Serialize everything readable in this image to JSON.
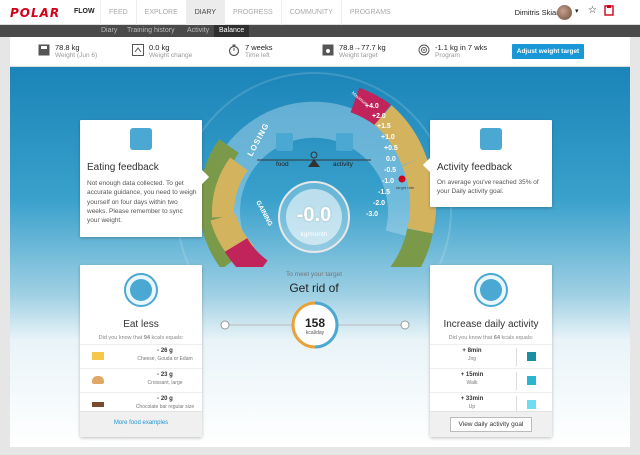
{
  "header": {
    "logo": "POLAR",
    "brand": "FLOW",
    "nav": [
      "FEED",
      "EXPLORE",
      "DIARY",
      "PROGRESS",
      "COMMUNITY",
      "PROGRAMS"
    ],
    "user_name": "Dimitris Skiannis"
  },
  "subnav": {
    "tabs": [
      "Diary",
      "Training history",
      "Activity",
      "Balance"
    ],
    "active": "Balance"
  },
  "stats": [
    {
      "icon": "scale-icon",
      "value": "78.8 kg",
      "label": "Weight (Jun 6)"
    },
    {
      "icon": "scale-change-icon",
      "value": "0.0 kg",
      "label": "Weight change"
    },
    {
      "icon": "stopwatch-icon",
      "value": "7 weeks",
      "label": "Time left"
    },
    {
      "icon": "target-scale-icon",
      "value": "78.8→77.7 kg",
      "label": "Weight target"
    },
    {
      "icon": "target-icon",
      "value": "-1.1 kg in 7 wks",
      "label": "Program"
    }
  ],
  "adjust_button": "Adjust weight target",
  "gauge": {
    "losing": "LOSING",
    "gaining": "GAINING",
    "food": "food",
    "activity": "activity",
    "maximum": "Maximum",
    "ticks": [
      "+4.0",
      "+2.0",
      "+1.5",
      "+1.0",
      "+0.5",
      "0.0",
      "-0.5",
      "-1.0",
      "-1.5",
      "-2.0",
      "-3.0"
    ],
    "target_label": "target rate",
    "value": "-0.0",
    "unit": "kg/month"
  },
  "eating_feedback": {
    "title": "Eating feedback",
    "text": "Not enough data collected. To get accurate guidance, you need to weigh yourself on four days within two weeks. Please remember to sync your weight."
  },
  "activity_feedback": {
    "title": "Activity feedback",
    "text": "On average you've reached 35% of your Daily activity goal."
  },
  "target": {
    "subtitle": "To meet your target",
    "title": "Get rid of",
    "value": "158",
    "unit": "kcal/day"
  },
  "eat_less": {
    "title": "Eat less",
    "did_pre": "Did you know that",
    "did_num": "94",
    "did_post": "kcals equals:",
    "items": [
      {
        "amount": "- 26 g",
        "name": "Cheese, Gouda or Edam",
        "color": "#f5c84a"
      },
      {
        "amount": "- 23 g",
        "name": "Croissant, large",
        "color": "#e0a866"
      },
      {
        "amount": "- 20 g",
        "name": "Chocolate bar regular size",
        "color": "#7a4a2e"
      }
    ],
    "link": "More food examples"
  },
  "increase_activity": {
    "title": "Increase daily activity",
    "did_pre": "Did you know that",
    "did_num": "64",
    "did_post": "kcals equals:",
    "items": [
      {
        "amount": "+ 8min",
        "name": "Jog",
        "color": "#1a8ea3"
      },
      {
        "amount": "+ 15min",
        "name": "Walk",
        "color": "#2bb5d0"
      },
      {
        "amount": "+ 33min",
        "name": "Up",
        "color": "#6fdcf0"
      }
    ],
    "button": "View daily activity goal"
  },
  "colors": {
    "accent": "#1a97d6",
    "olive": "#7a9a4a",
    "tan": "#d4b35f",
    "magenta": "#c0245a",
    "orange": "#e8a23a",
    "polar_red": "#d10019"
  }
}
